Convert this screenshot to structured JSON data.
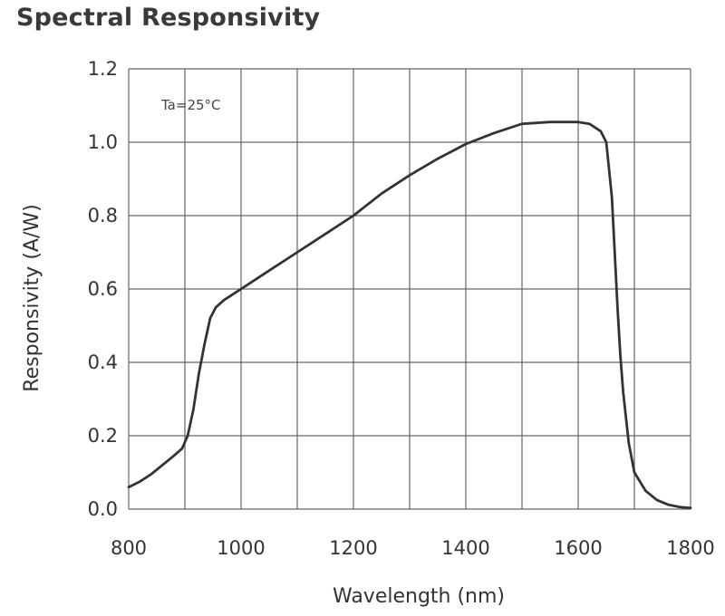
{
  "chart_data": {
    "type": "line",
    "title": "Spectral Responsivity",
    "xlabel": "Wavelength (nm)",
    "ylabel": "Responsivity (A/W)",
    "annotation": "Ta=25°C",
    "xlim": [
      800,
      1800
    ],
    "ylim": [
      0,
      1.2
    ],
    "xticks": [
      800,
      1000,
      1200,
      1400,
      1600,
      1800
    ],
    "xtick_labels": [
      "800",
      "1000",
      "1200",
      "1400",
      "1600",
      "1800"
    ],
    "yticks": [
      0.0,
      0.2,
      0.4,
      0.6,
      0.8,
      1.0,
      1.2
    ],
    "ytick_labels": [
      "0.0",
      "0.2",
      "0.4",
      "0.6",
      "0.8",
      "1.0",
      "1.2"
    ],
    "grid": true,
    "series": [
      {
        "name": "Responsivity",
        "x": [
          800,
          820,
          840,
          860,
          880,
          895,
          905,
          915,
          925,
          935,
          945,
          955,
          970,
          985,
          1000,
          1050,
          1100,
          1150,
          1200,
          1250,
          1300,
          1350,
          1400,
          1450,
          1500,
          1550,
          1600,
          1620,
          1640,
          1650,
          1660,
          1665,
          1670,
          1675,
          1680,
          1690,
          1700,
          1720,
          1740,
          1760,
          1780,
          1800
        ],
        "values": [
          0.06,
          0.075,
          0.095,
          0.12,
          0.145,
          0.165,
          0.2,
          0.27,
          0.37,
          0.45,
          0.52,
          0.55,
          0.57,
          0.585,
          0.6,
          0.65,
          0.7,
          0.75,
          0.8,
          0.86,
          0.91,
          0.955,
          0.995,
          1.025,
          1.05,
          1.055,
          1.055,
          1.05,
          1.03,
          1.0,
          0.85,
          0.7,
          0.55,
          0.42,
          0.32,
          0.18,
          0.1,
          0.05,
          0.025,
          0.012,
          0.006,
          0.003
        ]
      }
    ]
  }
}
